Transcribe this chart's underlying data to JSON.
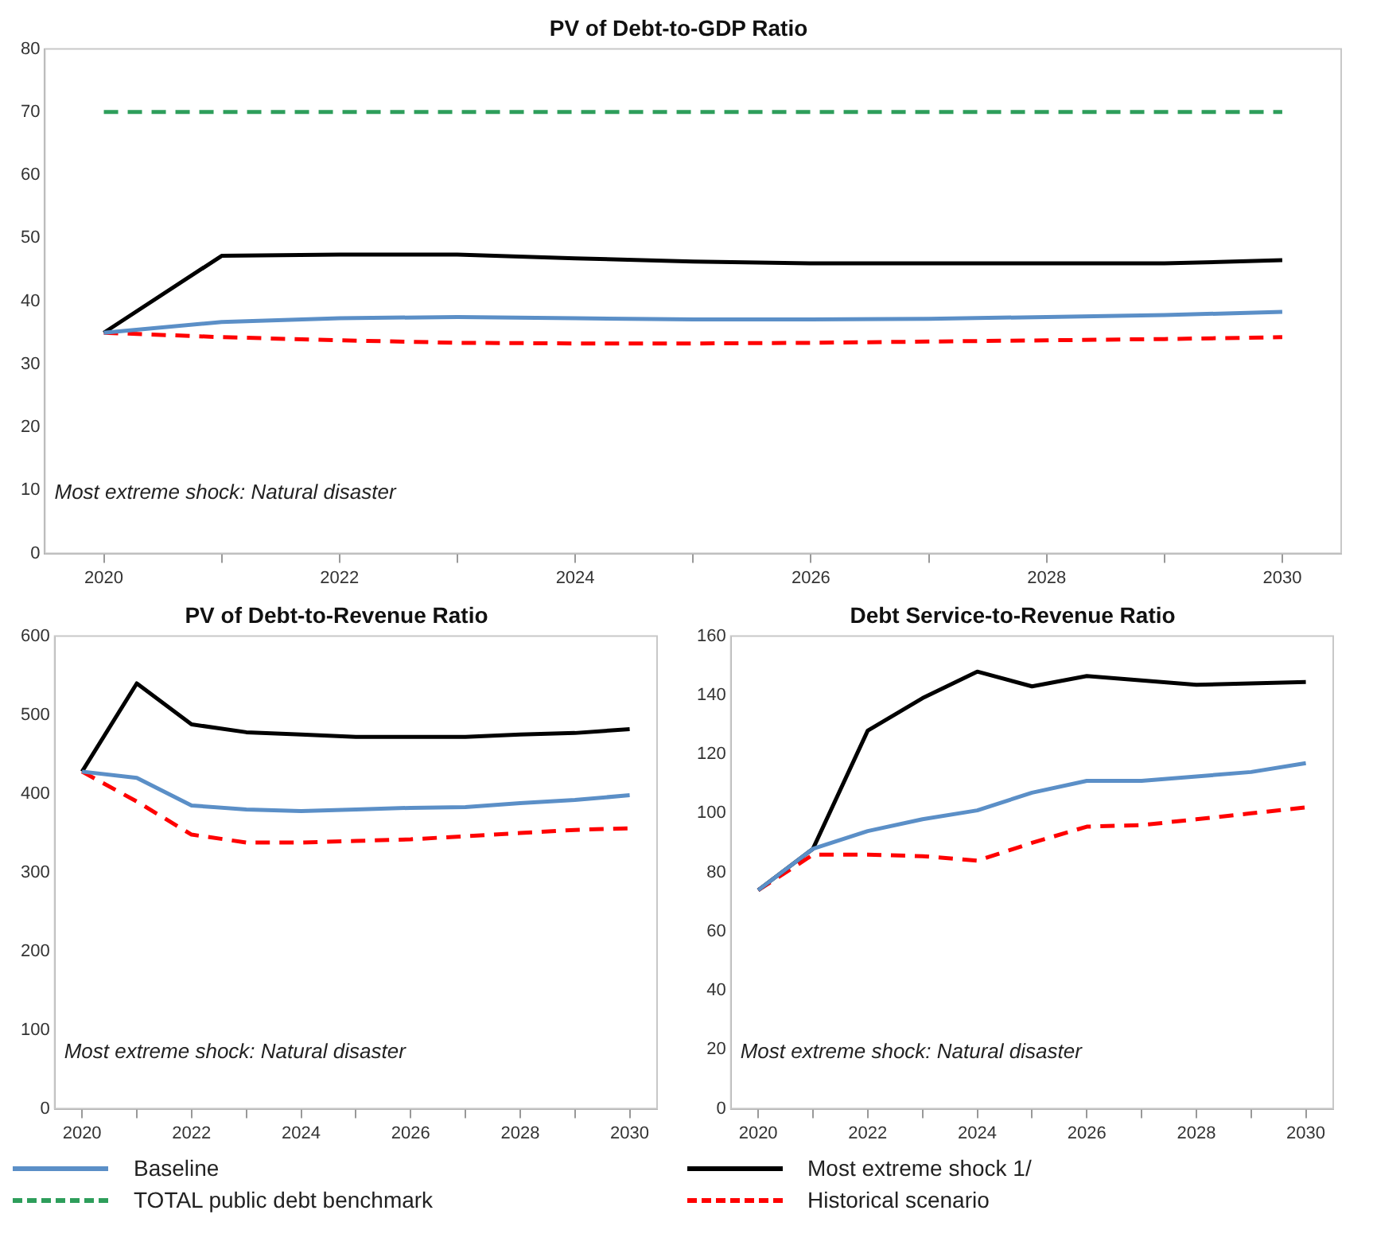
{
  "chart_data": [
    {
      "type": "line",
      "title": "PV of Debt-to-GDP Ratio",
      "x": [
        2020,
        2021,
        2022,
        2023,
        2024,
        2025,
        2026,
        2027,
        2028,
        2029,
        2030
      ],
      "xlim": [
        2019.5,
        2030.5
      ],
      "xticks": [
        2020,
        {
          "value": 2021,
          "label": null
        },
        2022,
        {
          "value": 2023,
          "label": null
        },
        2024,
        {
          "value": 2025,
          "label": null
        },
        2026,
        {
          "value": 2027,
          "label": null
        },
        2028,
        {
          "value": 2029,
          "label": null
        },
        2030
      ],
      "ylim": [
        0,
        80
      ],
      "yticks": [
        0,
        10,
        20,
        30,
        40,
        50,
        60,
        70,
        80
      ],
      "grid": false,
      "legend": "bottom",
      "marker": "none",
      "annotations": [
        "Most extreme shock: Natural disaster"
      ],
      "series": [
        {
          "name": "Baseline",
          "color": "#5b8fc7",
          "line_style": "solid",
          "values": [
            35,
            36.7,
            37.3,
            37.5,
            37.3,
            37.1,
            37.1,
            37.2,
            37.5,
            37.8,
            38.3
          ]
        },
        {
          "name": "TOTAL public debt benchmark",
          "color": "#2e9e5b",
          "line_style": "dashed",
          "values": [
            70,
            70,
            70,
            70,
            70,
            70,
            70,
            70,
            70,
            70,
            70
          ]
        },
        {
          "name": "Most extreme shock 1/",
          "color": "#000000",
          "line_style": "solid",
          "values": [
            35,
            47.2,
            47.4,
            47.4,
            46.8,
            46.3,
            46,
            46,
            46,
            46,
            46.5
          ]
        },
        {
          "name": "Historical scenario",
          "color": "#ff0000",
          "line_style": "dashed",
          "values": [
            35,
            34.3,
            33.8,
            33.4,
            33.3,
            33.3,
            33.4,
            33.6,
            33.8,
            34,
            34.3
          ]
        }
      ]
    },
    {
      "type": "line",
      "title": "PV of Debt-to-Revenue Ratio",
      "x": [
        2020,
        2021,
        2022,
        2023,
        2024,
        2025,
        2026,
        2027,
        2028,
        2029,
        2030
      ],
      "xlim": [
        2019.5,
        2030.5
      ],
      "xticks": [
        2020,
        {
          "value": 2021,
          "label": null
        },
        2022,
        {
          "value": 2023,
          "label": null
        },
        2024,
        {
          "value": 2025,
          "label": null
        },
        2026,
        {
          "value": 2027,
          "label": null
        },
        2028,
        {
          "value": 2029,
          "label": null
        },
        2030
      ],
      "ylim": [
        0,
        600
      ],
      "yticks": [
        0,
        100,
        200,
        300,
        400,
        500,
        600
      ],
      "grid": false,
      "marker": "none",
      "annotations": [
        "Most extreme shock: Natural disaster"
      ],
      "series": [
        {
          "color": "#5b8fc7",
          "line_style": "solid",
          "values": [
            428,
            420,
            385,
            380,
            378,
            380,
            382,
            383,
            388,
            392,
            398
          ]
        },
        {
          "color": "#000000",
          "line_style": "solid",
          "values": [
            428,
            540,
            488,
            478,
            475,
            472,
            472,
            472,
            475,
            477,
            482
          ]
        },
        {
          "color": "#ff0000",
          "line_style": "dashed",
          "values": [
            428,
            390,
            348,
            338,
            338,
            340,
            342,
            346,
            350,
            354,
            356
          ]
        }
      ]
    },
    {
      "type": "line",
      "title": "Debt Service-to-Revenue Ratio",
      "x": [
        2020,
        2021,
        2022,
        2023,
        2024,
        2025,
        2026,
        2027,
        2028,
        2029,
        2030
      ],
      "xlim": [
        2019.5,
        2030.5
      ],
      "xticks": [
        2020,
        {
          "value": 2021,
          "label": null
        },
        2022,
        {
          "value": 2023,
          "label": null
        },
        2024,
        {
          "value": 2025,
          "label": null
        },
        2026,
        {
          "value": 2027,
          "label": null
        },
        2028,
        {
          "value": 2029,
          "label": null
        },
        2030
      ],
      "ylim": [
        0,
        160
      ],
      "yticks": [
        0,
        20,
        40,
        60,
        80,
        100,
        120,
        140,
        160
      ],
      "grid": false,
      "marker": "none",
      "annotations": [
        "Most extreme shock: Natural disaster"
      ],
      "series": [
        {
          "color": "#5b8fc7",
          "line_style": "solid",
          "values": [
            74,
            88,
            94,
            98,
            101,
            107,
            111,
            111,
            112.5,
            114,
            117
          ]
        },
        {
          "color": "#000000",
          "line_style": "solid",
          "values": [
            74,
            88,
            128,
            139,
            148,
            143,
            146.5,
            145,
            143.5,
            144,
            144.5
          ]
        },
        {
          "color": "#ff0000",
          "line_style": "dashed",
          "values": [
            74,
            86,
            86,
            85.5,
            84,
            90,
            95.5,
            96,
            98,
            100,
            102
          ]
        }
      ]
    }
  ]
}
